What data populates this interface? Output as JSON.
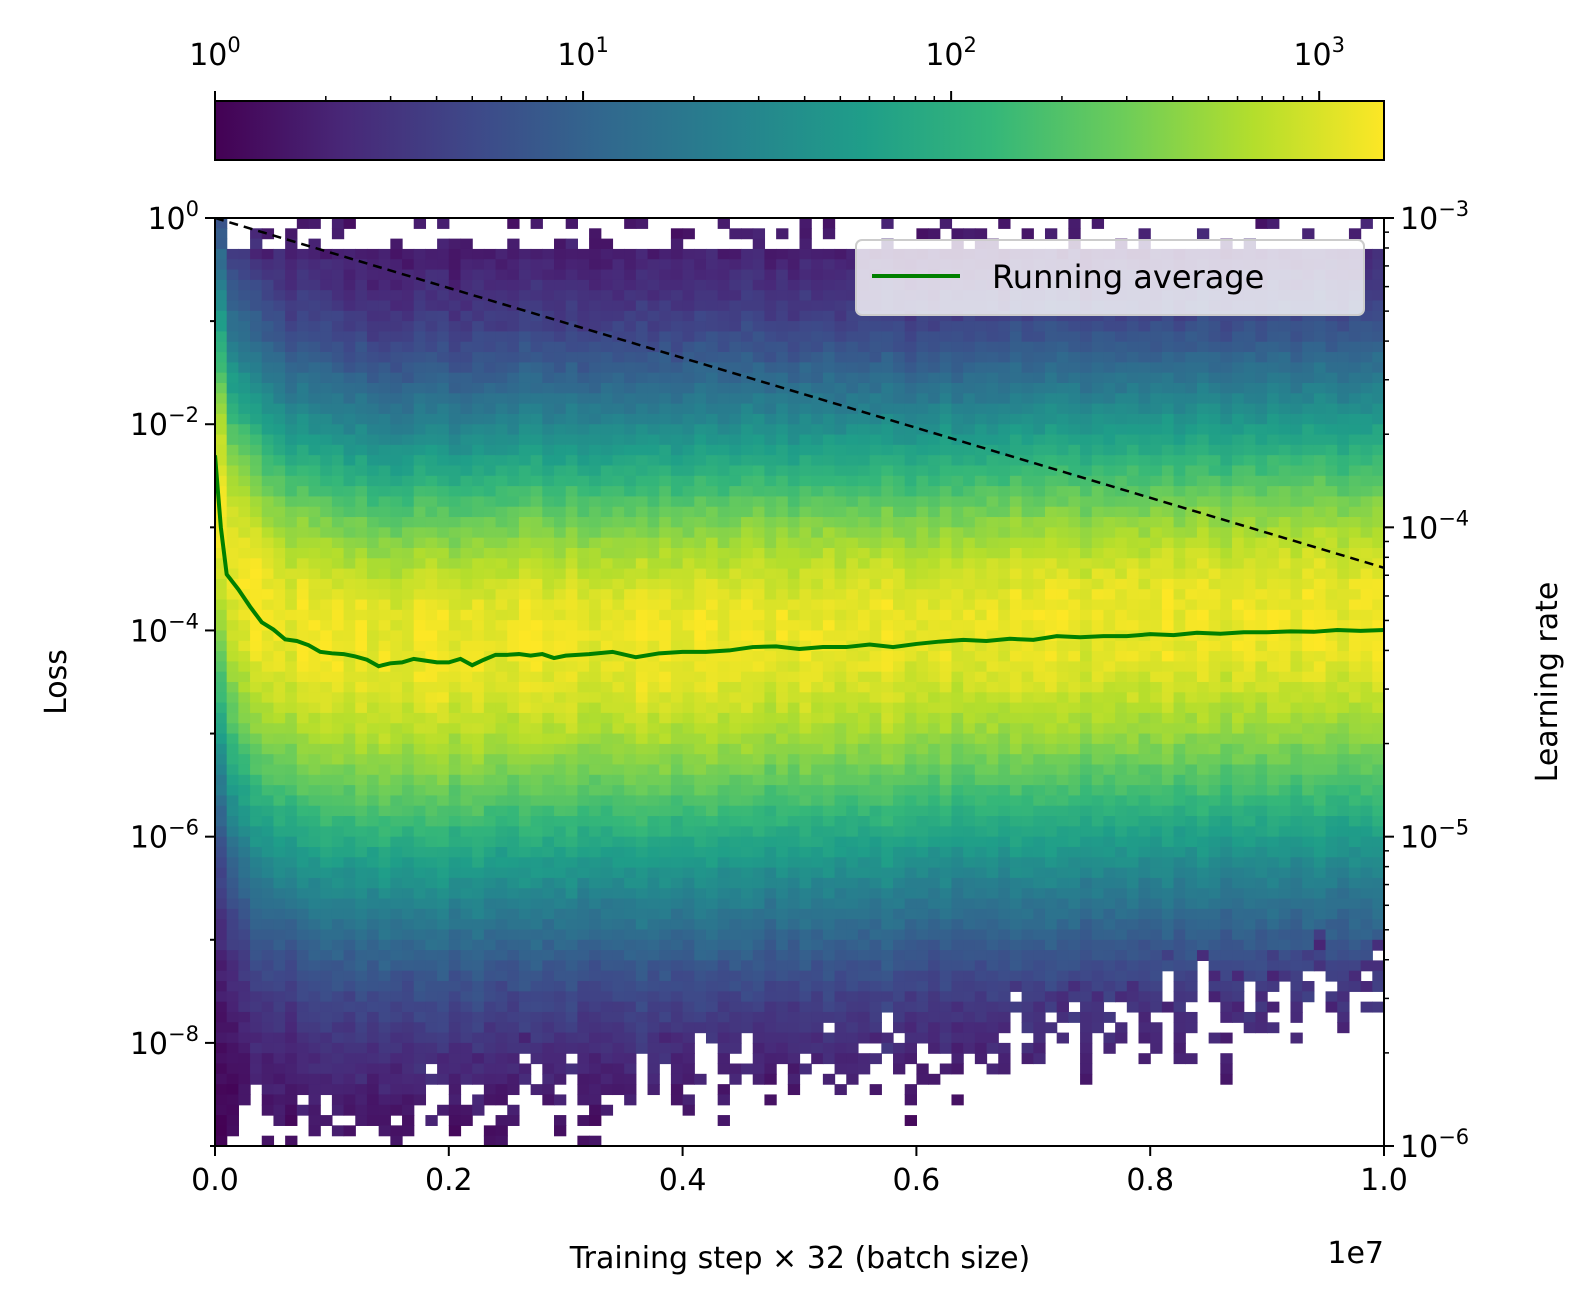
{
  "chart_data": {
    "type": "heatmap",
    "title": "",
    "xlabel": "Training step × 32 (batch size)",
    "x_offset_text": "1e7",
    "ylabel_left": "Loss",
    "ylabel_right": "Learning rate",
    "xlim": [
      0.0,
      1.0
    ],
    "x_scale_factor": 10000000,
    "x_ticks": [
      "0.0",
      "0.2",
      "0.4",
      "0.6",
      "0.8",
      "1.0"
    ],
    "y_left": {
      "scale": "log",
      "lim": [
        1e-09,
        1
      ],
      "ticks": [
        {
          "base": "10",
          "exp": "0"
        },
        {
          "base": "10",
          "exp": "−2"
        },
        {
          "base": "10",
          "exp": "−4"
        },
        {
          "base": "10",
          "exp": "−6"
        },
        {
          "base": "10",
          "exp": "−8"
        }
      ]
    },
    "y_right": {
      "scale": "log",
      "lim": [
        1e-06,
        0.001
      ],
      "ticks": [
        {
          "base": "10",
          "exp": "−3"
        },
        {
          "base": "10",
          "exp": "−4"
        },
        {
          "base": "10",
          "exp": "−5"
        },
        {
          "base": "10",
          "exp": "−6"
        }
      ]
    },
    "colorbar": {
      "scale": "log",
      "lim": [
        1,
        1500
      ],
      "colormap": "viridis",
      "ticks": [
        {
          "base": "10",
          "exp": "0"
        },
        {
          "base": "10",
          "exp": "1"
        },
        {
          "base": "10",
          "exp": "2"
        },
        {
          "base": "10",
          "exp": "3"
        }
      ]
    },
    "legend": {
      "placement": "top-right",
      "entries": [
        {
          "label": "Running average",
          "color": "#008000"
        }
      ]
    },
    "series": [
      {
        "name": "Running average",
        "axis": "left",
        "color": "#008000",
        "style": "solid",
        "x": [
          0.0,
          0.005,
          0.01,
          0.02,
          0.03,
          0.04,
          0.05,
          0.06,
          0.07,
          0.08,
          0.09,
          0.1,
          0.11,
          0.12,
          0.13,
          0.14,
          0.15,
          0.16,
          0.17,
          0.18,
          0.19,
          0.2,
          0.21,
          0.22,
          0.23,
          0.24,
          0.25,
          0.26,
          0.27,
          0.28,
          0.29,
          0.3,
          0.32,
          0.34,
          0.36,
          0.38,
          0.4,
          0.42,
          0.44,
          0.46,
          0.48,
          0.5,
          0.52,
          0.54,
          0.56,
          0.58,
          0.6,
          0.62,
          0.64,
          0.66,
          0.68,
          0.7,
          0.72,
          0.74,
          0.76,
          0.78,
          0.8,
          0.82,
          0.84,
          0.86,
          0.88,
          0.9,
          0.92,
          0.94,
          0.96,
          0.98,
          1.0
        ],
        "y": [
          0.005,
          0.001,
          0.00035,
          0.00025,
          0.00017,
          0.00012,
          0.000102,
          8.2e-05,
          7.9e-05,
          7.2e-05,
          6.2e-05,
          6e-05,
          5.9e-05,
          5.6e-05,
          5.2e-05,
          4.5e-05,
          4.8e-05,
          4.9e-05,
          5.3e-05,
          5.1e-05,
          4.9e-05,
          4.9e-05,
          5.3e-05,
          4.6e-05,
          5.2e-05,
          5.8e-05,
          5.8e-05,
          5.9e-05,
          5.7e-05,
          5.9e-05,
          5.4e-05,
          5.7e-05,
          5.9e-05,
          6.2e-05,
          5.5e-05,
          6e-05,
          6.2e-05,
          6.2e-05,
          6.4e-05,
          6.9e-05,
          7e-05,
          6.6e-05,
          6.9e-05,
          6.9e-05,
          7.3e-05,
          6.9e-05,
          7.4e-05,
          7.8e-05,
          8.1e-05,
          7.9e-05,
          8.3e-05,
          8.1e-05,
          8.8e-05,
          8.6e-05,
          8.8e-05,
          8.8e-05,
          9.2e-05,
          9e-05,
          9.5e-05,
          9.3e-05,
          9.6e-05,
          9.6e-05,
          9.8e-05,
          9.7e-05,
          0.000101,
          9.9e-05,
          0.000101
        ]
      },
      {
        "name": "",
        "axis": "right",
        "color": "#000000",
        "style": "dashed",
        "x": [
          0.0,
          1.0
        ],
        "y": [
          0.001,
          7.4e-05
        ]
      }
    ],
    "heatmap": {
      "description_band_center_log10": -4.2,
      "max_count": 1500,
      "x_bins": 100,
      "y_bins": 90
    }
  }
}
